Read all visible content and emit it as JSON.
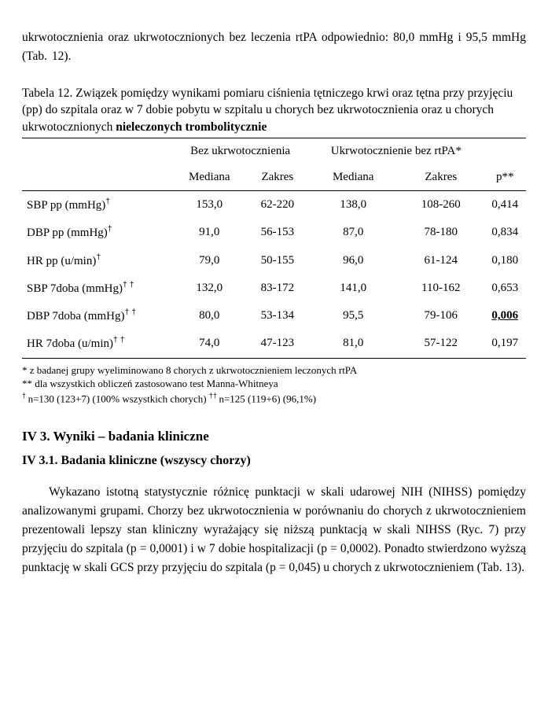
{
  "intro": {
    "text": "ukrwotocznienia oraz ukrwotocznionych bez leczenia rtPA odpowiednio: 80,0 mmHg i 95,5 mmHg (Tab. 12)."
  },
  "table": {
    "caption_line1": "Tabela 12. Związek pomiędzy wynikami pomiaru ciśnienia tętniczego krwi oraz tętna przy przyjęciu (pp) do szpitala oraz w 7 dobie pobytu w szpitalu u chorych bez ukrwotocznienia oraz u chorych ukrwotocznionych ",
    "caption_bold": "nieleczonych trombolitycznie",
    "group_a": "Bez ukrwotocznienia",
    "group_b": "Ukrwotocznienie bez rtPA*",
    "col_median": "Mediana",
    "col_range": "Zakres",
    "col_p": "p**",
    "rows": [
      {
        "label": "SBP pp (mmHg)",
        "dag": "†",
        "medA": "153,0",
        "rngA": "62-220",
        "medB": "138,0",
        "rngB": "108-260",
        "p": "0,414",
        "pBold": false
      },
      {
        "label": "DBP pp (mmHg)",
        "dag": "†",
        "medA": "91,0",
        "rngA": "56-153",
        "medB": "87,0",
        "rngB": "78-180",
        "p": "0,834",
        "pBold": false
      },
      {
        "label": "HR pp (u/min)",
        "dag": "†",
        "medA": "79,0",
        "rngA": "50-155",
        "medB": "96,0",
        "rngB": "61-124",
        "p": "0,180",
        "pBold": false
      },
      {
        "label": "SBP 7doba (mmHg)",
        "dag": "† †",
        "medA": "132,0",
        "rngA": "83-172",
        "medB": "141,0",
        "rngB": "110-162",
        "p": "0,653",
        "pBold": false
      },
      {
        "label": "DBP 7doba (mmHg)",
        "dag": "† †",
        "medA": "80,0",
        "rngA": "53-134",
        "medB": "95,5",
        "rngB": "79-106",
        "p": "0,006",
        "pBold": true
      },
      {
        "label": "HR 7doba (u/min)",
        "dag": "† †",
        "medA": "74,0",
        "rngA": "47-123",
        "medB": "81,0",
        "rngB": "57-122",
        "p": "0,197",
        "pBold": false
      }
    ],
    "footnotes": {
      "f1": "* z badanej grupy wyeliminowano 8 chorych z ukrwotocznieniem leczonych rtPA",
      "f2": "** dla wszystkich obliczeń zastosowano test Manna-Whitneya",
      "f3a": "† ",
      "f3b": "n=130 (123+7) (100% wszystkich chorych)     ",
      "f3c": "†† ",
      "f3d": "n=125 (119+6) (96,1%)"
    }
  },
  "section": {
    "head": "IV 3. Wyniki – badania kliniczne",
    "subhead": "IV 3.1. Badania kliniczne (wszyscy chorzy)",
    "para": "Wykazano istotną statystycznie różnicę punktacji w skali udarowej NIH (NIHSS) pomiędzy analizowanymi grupami. Chorzy bez ukrwotocznienia w porównaniu do chorych z ukrwotocznieniem prezentowali lepszy stan kliniczny wyrażający się niższą punktacją w skali NIHSS (Ryc. 7) przy przyjęciu do szpitala (p = 0,0001) i w 7 dobie hospitalizacji (p = 0,0002). Ponadto stwierdzono wyższą punktację w skali GCS przy przyjęciu do szpitala (p = 0,045) u chorych z ukrwotocznieniem  (Tab. 13)."
  }
}
